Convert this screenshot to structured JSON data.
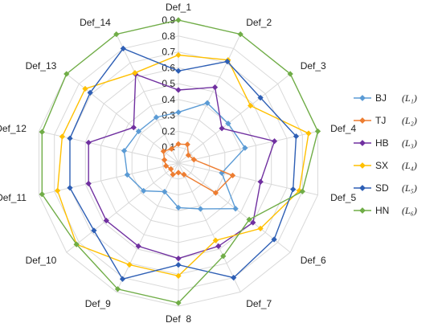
{
  "chart_data": {
    "type": "radar",
    "categories": [
      "Def_1",
      "Def_2",
      "Def_3",
      "Def_4",
      "Def_5",
      "Def_6",
      "Def_7",
      "Def_8",
      "Def_9",
      "Def_10",
      "Def_11",
      "Def_12",
      "Def_13",
      "Def_14"
    ],
    "radial_ticks": [
      "0.1",
      "0.2",
      "0.3",
      "0.4",
      "0.5",
      "0.6",
      "0.7",
      "0.8",
      "0.9"
    ],
    "rlim": [
      0,
      0.9
    ],
    "grid": true,
    "legend_position": "right",
    "series": [
      {
        "name": "BJ",
        "sub": "(L₁)",
        "color": "#5B9BD5",
        "marker": "diamond",
        "values": [
          0.32,
          0.42,
          0.4,
          0.43,
          0.28,
          0.46,
          0.32,
          0.28,
          0.2,
          0.28,
          0.33,
          0.35,
          0.32,
          0.32
        ]
      },
      {
        "name": "TJ",
        "sub": "(L₂)",
        "color": "#ED7D31",
        "marker": "diamond",
        "values": [
          0.12,
          0.13,
          0.08,
          0.1,
          0.35,
          0.3,
          0.08,
          0.06,
          0.08,
          0.06,
          0.08,
          0.09,
          0.12,
          0.1
        ]
      },
      {
        "name": "HB",
        "sub": "(L₃)",
        "color": "#7030A0",
        "marker": "diamond",
        "values": [
          0.46,
          0.53,
          0.35,
          0.62,
          0.53,
          0.6,
          0.58,
          0.6,
          0.58,
          0.58,
          0.58,
          0.58,
          0.36,
          0.62
        ]
      },
      {
        "name": "SX",
        "sub": "(L₄)",
        "color": "#FFC000",
        "marker": "diamond",
        "values": [
          0.68,
          0.72,
          0.58,
          0.84,
          0.78,
          0.66,
          0.54,
          0.71,
          0.71,
          0.82,
          0.78,
          0.75,
          0.75,
          0.63
        ]
      },
      {
        "name": "SD",
        "sub": "(L₅)",
        "color": "#2E5FB5",
        "marker": "diamond",
        "values": [
          0.58,
          0.71,
          0.66,
          0.76,
          0.74,
          0.77,
          0.8,
          0.64,
          0.81,
          0.68,
          0.7,
          0.7,
          0.71,
          0.8
        ]
      },
      {
        "name": "HN",
        "sub": "(L₆)",
        "color": "#70AD47",
        "marker": "diamond",
        "values": [
          0.9,
          0.9,
          0.9,
          0.9,
          0.8,
          0.57,
          0.65,
          0.88,
          0.88,
          0.82,
          0.88,
          0.88,
          0.9,
          0.9
        ]
      }
    ]
  }
}
